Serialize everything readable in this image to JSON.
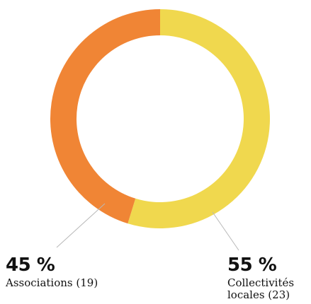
{
  "chart_data": {
    "type": "pie",
    "donut": true,
    "slices": [
      {
        "label": "Collectivités locales (23)",
        "percent_label": "55 %",
        "value": 23,
        "color": "#f0d84e"
      },
      {
        "label": "Associations (19)",
        "percent_label": "45 %",
        "value": 19,
        "color": "#f08535"
      }
    ],
    "legend": "none (direct labels at bottom-left and bottom-right)"
  }
}
